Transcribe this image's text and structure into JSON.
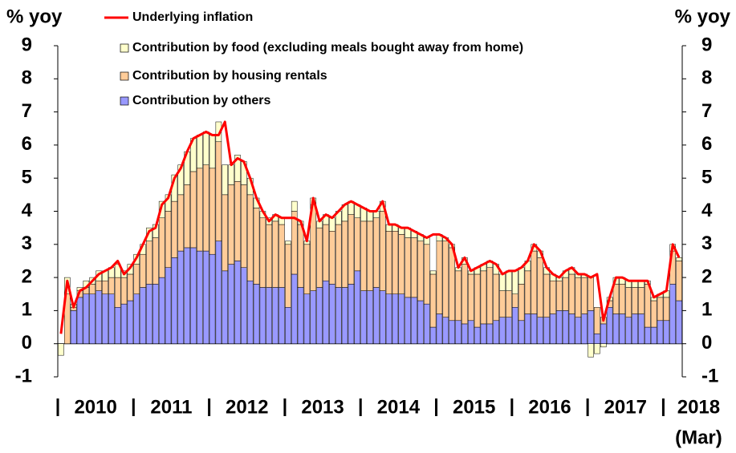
{
  "chart_data": {
    "type": "bar",
    "stacked": true,
    "y_label": "% yoy",
    "y2_label": "% yoy",
    "year_labels": [
      "2010",
      "2011",
      "2012",
      "2013",
      "2014",
      "2015",
      "2016",
      "2017",
      "2018"
    ],
    "last_year_note": "(Mar)",
    "categories": [
      null,
      null,
      null,
      null,
      null,
      null,
      null,
      null,
      null,
      null,
      null,
      null,
      null,
      null,
      null,
      null,
      null,
      null,
      null,
      null,
      null,
      null,
      null,
      null,
      null,
      null,
      null,
      null,
      null,
      null,
      null,
      null,
      null,
      null,
      null,
      null,
      null,
      null,
      null,
      null,
      null,
      null,
      null,
      null,
      null,
      null,
      null,
      null,
      null,
      null,
      null,
      null,
      null,
      null,
      null,
      null,
      null,
      null,
      null,
      null,
      null,
      null,
      null,
      null,
      null,
      null,
      null,
      null,
      null,
      null,
      null,
      null,
      null,
      null,
      null,
      null,
      null,
      null,
      null,
      null,
      null,
      null,
      null,
      null,
      null,
      null,
      null,
      null,
      null,
      null,
      null,
      null,
      null,
      null,
      null,
      null,
      null,
      null,
      null
    ],
    "ylim": [
      -1,
      9
    ],
    "yticks": [
      -1,
      0,
      1,
      2,
      3,
      4,
      5,
      6,
      7,
      8,
      9
    ],
    "y2lim": [
      -1,
      9
    ],
    "y2ticks": [
      -1,
      0,
      1,
      2,
      3,
      4,
      5,
      6,
      7,
      8,
      9
    ],
    "series": [
      {
        "name": "Underlying inflation",
        "kind": "line",
        "color": "#ff0000",
        "values": [
          0.3,
          1.9,
          1.1,
          1.6,
          1.7,
          1.9,
          2.1,
          2.2,
          2.3,
          2.5,
          2.1,
          2.3,
          2.6,
          3.0,
          3.4,
          3.5,
          4.2,
          4.4,
          5.0,
          5.3,
          5.8,
          6.2,
          6.3,
          6.4,
          6.3,
          6.3,
          6.7,
          5.4,
          5.6,
          5.5,
          5.0,
          4.4,
          4.0,
          3.7,
          3.9,
          3.8,
          3.8,
          3.8,
          3.7,
          3.1,
          4.4,
          3.7,
          3.9,
          3.8,
          4.0,
          4.2,
          4.3,
          4.2,
          4.1,
          4.0,
          4.0,
          4.3,
          3.6,
          3.6,
          3.5,
          3.5,
          3.4,
          3.3,
          3.2,
          3.3,
          3.3,
          3.2,
          3.0,
          2.3,
          2.6,
          2.2,
          2.3,
          2.4,
          2.5,
          2.4,
          2.1,
          2.2,
          2.2,
          2.3,
          2.5,
          3.0,
          2.8,
          2.3,
          2.1,
          2.0,
          2.2,
          2.3,
          2.1,
          2.1,
          2.0,
          2.1,
          0.7,
          1.4,
          2.0,
          2.0,
          1.9,
          1.9,
          1.9,
          1.9,
          1.4,
          1.5,
          1.6,
          3.0,
          2.6
        ]
      },
      {
        "name": "Contribution by food (excluding meals bought away from home)",
        "kind": "bar",
        "color": "#ffffcc",
        "values": [
          -0.35,
          0.5,
          0.1,
          0.1,
          0.2,
          0.2,
          0.3,
          0.3,
          0.3,
          0.4,
          0.2,
          0.3,
          0.3,
          0.3,
          0.4,
          0.4,
          0.5,
          0.5,
          0.8,
          0.9,
          1.0,
          1.0,
          1.0,
          1.0,
          1.0,
          0.6,
          0.9,
          0.6,
          0.8,
          0.7,
          0.5,
          0.3,
          0.2,
          0.2,
          0.2,
          0.2,
          0.1,
          0.3,
          0.1,
          0.1,
          0.2,
          0.2,
          0.3,
          0.4,
          0.4,
          0.5,
          0.4,
          0.4,
          0.4,
          0.3,
          0.2,
          0.3,
          0.2,
          0.2,
          0.2,
          0.3,
          0.2,
          0.2,
          0.2,
          0.1,
          0.2,
          0.1,
          0.1,
          0.1,
          0.2,
          0.1,
          0.2,
          0.2,
          0.2,
          0.3,
          0.5,
          0.6,
          0.7,
          0.5,
          0.3,
          0.2,
          0.2,
          0.2,
          0.2,
          0.1,
          0.2,
          0.2,
          0.1,
          0.1,
          -0.4,
          -0.3,
          -0.1,
          0.1,
          0.2,
          0.2,
          0.2,
          0.2,
          0.2,
          0.1,
          0.1,
          0.1,
          0.2,
          0.2,
          0.1
        ]
      },
      {
        "name": "Contribution by housing rentals",
        "kind": "bar",
        "color": "#ffcc99",
        "values": [
          0.0,
          1.5,
          0.1,
          0.2,
          0.2,
          0.3,
          0.3,
          0.4,
          0.5,
          0.9,
          0.8,
          0.8,
          0.9,
          1.0,
          1.3,
          1.4,
          1.8,
          1.7,
          1.7,
          1.7,
          1.9,
          2.3,
          2.5,
          2.6,
          2.6,
          3.0,
          2.3,
          2.4,
          2.4,
          2.5,
          2.6,
          2.3,
          2.1,
          1.9,
          2.0,
          1.9,
          1.9,
          1.9,
          1.9,
          1.5,
          2.6,
          1.8,
          1.7,
          1.6,
          1.9,
          2.0,
          2.1,
          1.6,
          2.1,
          2.1,
          2.1,
          2.4,
          1.9,
          1.9,
          1.8,
          1.8,
          1.8,
          1.8,
          1.8,
          1.6,
          2.2,
          2.3,
          2.2,
          1.5,
          1.8,
          1.4,
          1.6,
          1.6,
          1.7,
          1.4,
          0.8,
          0.8,
          0.4,
          1.1,
          1.3,
          1.9,
          1.8,
          1.3,
          1.0,
          0.9,
          1.0,
          1.2,
          1.2,
          1.1,
          1.0,
          0.8,
          0.2,
          0.2,
          0.9,
          0.9,
          0.9,
          0.8,
          0.8,
          1.3,
          0.8,
          0.7,
          0.7,
          1.0,
          1.2
        ]
      },
      {
        "name": "Contribution by others",
        "kind": "bar",
        "color": "#9999ff",
        "values": [
          0.0,
          0.0,
          1.0,
          1.4,
          1.5,
          1.5,
          1.6,
          1.5,
          1.5,
          1.1,
          1.2,
          1.3,
          1.5,
          1.7,
          1.8,
          1.8,
          2.0,
          2.3,
          2.6,
          2.8,
          2.9,
          2.9,
          2.8,
          2.8,
          2.7,
          3.1,
          2.2,
          2.4,
          2.5,
          2.3,
          1.9,
          1.8,
          1.7,
          1.7,
          1.7,
          1.7,
          1.1,
          2.1,
          1.7,
          1.5,
          1.6,
          1.7,
          1.9,
          1.8,
          1.7,
          1.7,
          1.8,
          2.2,
          1.6,
          1.6,
          1.7,
          1.6,
          1.5,
          1.5,
          1.5,
          1.4,
          1.4,
          1.3,
          1.2,
          0.5,
          0.9,
          0.8,
          0.7,
          0.7,
          0.6,
          0.7,
          0.5,
          0.6,
          0.6,
          0.7,
          0.8,
          0.8,
          1.1,
          0.7,
          0.9,
          0.9,
          0.8,
          0.8,
          0.9,
          1.0,
          1.0,
          0.9,
          0.8,
          0.9,
          1.0,
          0.3,
          0.6,
          1.1,
          0.9,
          0.9,
          0.8,
          0.9,
          0.9,
          0.5,
          0.5,
          0.7,
          0.7,
          1.8,
          1.3
        ]
      }
    ]
  }
}
